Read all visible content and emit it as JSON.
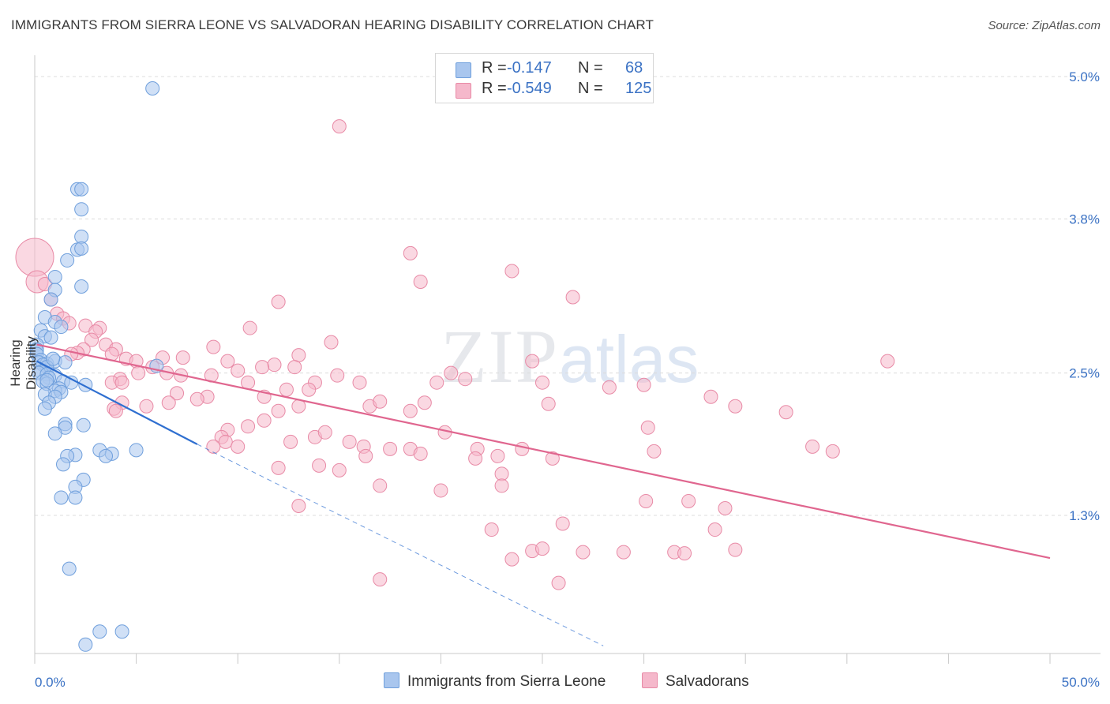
{
  "header": {
    "title": "IMMIGRANTS FROM SIERRA LEONE VS SALVADORAN HEARING DISABILITY CORRELATION CHART",
    "source": "Source: ZipAtlas.com"
  },
  "watermark": {
    "zip": "ZIP",
    "atlas": "atlas"
  },
  "legend": {
    "series": [
      {
        "r_label": "R =",
        "r_value": "-0.147",
        "n_label": "N =",
        "n_value": "68",
        "color": "#a9c6ee"
      },
      {
        "r_label": "R =",
        "r_value": "-0.549",
        "n_label": "N =",
        "n_value": "125",
        "color": "#f5b8cb"
      }
    ]
  },
  "colors": {
    "blue_fill": "#a9c6ee",
    "blue_stroke": "#6f9fdc",
    "blue_line": "#2f6fd0",
    "pink_fill": "#f5b8cb",
    "pink_stroke": "#e88aa6",
    "pink_line": "#e0668f",
    "axis_text": "#3b72c4",
    "grid": "#dcdcdc"
  },
  "chart_data": {
    "type": "scatter",
    "title": "IMMIGRANTS FROM SIERRA LEONE VS SALVADORAN HEARING DISABILITY CORRELATION CHART",
    "xlabel": "",
    "ylabel": "Hearing Disability",
    "xlim": [
      0,
      50
    ],
    "ylim": [
      0.3,
      5.0
    ],
    "x_tick_labels": [
      "0.0%",
      "50.0%"
    ],
    "y_ticks": [
      1.3,
      2.5,
      3.8,
      5.0
    ],
    "y_tick_labels": [
      "1.3%",
      "2.5%",
      "3.8%",
      "5.0%"
    ],
    "grid": true,
    "legend_position": "top-center",
    "series": [
      {
        "name": "Immigrants from Sierra Leone",
        "color": "#a9c6ee",
        "trend": {
          "x0": 0.1,
          "y0": 2.6,
          "x1": 8.0,
          "y1": 1.9,
          "dash_to_x": 28.0,
          "dash_to_y": 0.2
        },
        "points": [
          [
            5.8,
            4.9
          ],
          [
            2.1,
            4.05
          ],
          [
            2.3,
            4.05
          ],
          [
            2.3,
            3.88
          ],
          [
            2.3,
            3.65
          ],
          [
            2.1,
            3.54
          ],
          [
            2.3,
            3.55
          ],
          [
            1.6,
            3.45
          ],
          [
            1.0,
            3.31
          ],
          [
            1.0,
            3.2
          ],
          [
            2.3,
            3.23
          ],
          [
            0.8,
            3.12
          ],
          [
            0.5,
            2.97
          ],
          [
            1.0,
            2.93
          ],
          [
            1.3,
            2.89
          ],
          [
            0.3,
            2.86
          ],
          [
            0.5,
            2.81
          ],
          [
            0.8,
            2.8
          ],
          [
            0.1,
            2.74
          ],
          [
            0.1,
            2.7
          ],
          [
            0.1,
            2.69
          ],
          [
            0.1,
            2.66
          ],
          [
            0.3,
            2.61
          ],
          [
            0.2,
            2.59
          ],
          [
            0.6,
            2.58
          ],
          [
            1.0,
            2.6
          ],
          [
            1.5,
            2.59
          ],
          [
            0.4,
            2.57
          ],
          [
            0.6,
            2.55
          ],
          [
            0.3,
            2.51
          ],
          [
            0.2,
            2.5
          ],
          [
            0.6,
            2.49
          ],
          [
            1.0,
            2.48
          ],
          [
            0.7,
            2.46
          ],
          [
            0.4,
            2.43
          ],
          [
            0.6,
            2.41
          ],
          [
            1.4,
            2.43
          ],
          [
            1.8,
            2.42
          ],
          [
            2.5,
            2.4
          ],
          [
            1.2,
            2.37
          ],
          [
            1.0,
            2.35
          ],
          [
            1.3,
            2.34
          ],
          [
            0.5,
            2.32
          ],
          [
            1.0,
            2.3
          ],
          [
            0.7,
            2.25
          ],
          [
            0.5,
            2.2
          ],
          [
            1.5,
            2.07
          ],
          [
            2.4,
            2.06
          ],
          [
            1.5,
            2.04
          ],
          [
            1.0,
            1.99
          ],
          [
            3.2,
            1.85
          ],
          [
            5.0,
            1.85
          ],
          [
            2.0,
            1.81
          ],
          [
            3.8,
            1.82
          ],
          [
            3.5,
            1.8
          ],
          [
            1.6,
            1.8
          ],
          [
            1.4,
            1.73
          ],
          [
            2.4,
            1.6
          ],
          [
            2.0,
            1.54
          ],
          [
            1.3,
            1.45
          ],
          [
            1.7,
            0.85
          ],
          [
            3.2,
            0.32
          ],
          [
            4.3,
            0.32
          ],
          [
            2.5,
            0.21
          ],
          [
            6.0,
            2.56
          ],
          [
            2.0,
            1.45
          ],
          [
            0.9,
            2.62
          ],
          [
            0.6,
            2.44
          ]
        ]
      },
      {
        "name": "Salvadorans",
        "color": "#f5b8cb",
        "trend": {
          "x0": 0.1,
          "y0": 2.74,
          "x1": 50.0,
          "y1": 0.94
        },
        "points": [
          [
            15.0,
            4.58
          ],
          [
            18.5,
            3.51
          ],
          [
            23.5,
            3.36
          ],
          [
            19.0,
            3.27
          ],
          [
            26.5,
            3.14
          ],
          [
            12.0,
            3.1
          ],
          [
            0.5,
            3.25
          ],
          [
            0.8,
            3.12
          ],
          [
            1.1,
            3.0
          ],
          [
            1.4,
            2.96
          ],
          [
            1.7,
            2.92
          ],
          [
            2.5,
            2.9
          ],
          [
            3.2,
            2.88
          ],
          [
            3.0,
            2.85
          ],
          [
            2.8,
            2.78
          ],
          [
            3.5,
            2.74
          ],
          [
            2.4,
            2.7
          ],
          [
            4.0,
            2.7
          ],
          [
            2.1,
            2.67
          ],
          [
            1.8,
            2.66
          ],
          [
            3.8,
            2.66
          ],
          [
            4.5,
            2.62
          ],
          [
            5.0,
            2.6
          ],
          [
            6.3,
            2.63
          ],
          [
            7.3,
            2.63
          ],
          [
            8.8,
            2.72
          ],
          [
            9.5,
            2.6
          ],
          [
            10.6,
            2.88
          ],
          [
            14.6,
            2.76
          ],
          [
            13.0,
            2.65
          ],
          [
            12.8,
            2.55
          ],
          [
            11.8,
            2.57
          ],
          [
            11.2,
            2.55
          ],
          [
            10.0,
            2.52
          ],
          [
            8.7,
            2.48
          ],
          [
            7.2,
            2.48
          ],
          [
            6.5,
            2.5
          ],
          [
            5.8,
            2.55
          ],
          [
            5.1,
            2.5
          ],
          [
            4.2,
            2.45
          ],
          [
            3.8,
            2.42
          ],
          [
            4.3,
            2.42
          ],
          [
            7.0,
            2.33
          ],
          [
            8.5,
            2.3
          ],
          [
            8.0,
            2.28
          ],
          [
            6.6,
            2.25
          ],
          [
            5.5,
            2.22
          ],
          [
            4.3,
            2.25
          ],
          [
            3.9,
            2.2
          ],
          [
            4.0,
            2.18
          ],
          [
            10.5,
            2.42
          ],
          [
            11.3,
            2.3
          ],
          [
            12.4,
            2.36
          ],
          [
            13.8,
            2.42
          ],
          [
            13.5,
            2.36
          ],
          [
            14.9,
            2.48
          ],
          [
            16.0,
            2.42
          ],
          [
            16.5,
            2.22
          ],
          [
            17.0,
            2.26
          ],
          [
            19.8,
            2.42
          ],
          [
            20.5,
            2.5
          ],
          [
            21.2,
            2.45
          ],
          [
            19.2,
            2.25
          ],
          [
            18.5,
            2.18
          ],
          [
            13.0,
            2.22
          ],
          [
            12.0,
            2.18
          ],
          [
            11.3,
            2.1
          ],
          [
            10.5,
            2.05
          ],
          [
            9.5,
            2.02
          ],
          [
            9.2,
            1.96
          ],
          [
            9.4,
            1.92
          ],
          [
            8.8,
            1.88
          ],
          [
            10.0,
            1.88
          ],
          [
            12.6,
            1.92
          ],
          [
            13.8,
            1.96
          ],
          [
            14.3,
            2.0
          ],
          [
            15.5,
            1.92
          ],
          [
            16.2,
            1.88
          ],
          [
            16.3,
            1.8
          ],
          [
            17.5,
            1.86
          ],
          [
            18.5,
            1.86
          ],
          [
            19.0,
            1.82
          ],
          [
            20.2,
            2.0
          ],
          [
            21.8,
            1.86
          ],
          [
            21.7,
            1.78
          ],
          [
            22.8,
            1.8
          ],
          [
            24.0,
            1.86
          ],
          [
            25.5,
            1.78
          ],
          [
            25.3,
            2.24
          ],
          [
            25.0,
            2.42
          ],
          [
            24.5,
            2.6
          ],
          [
            28.3,
            2.38
          ],
          [
            30.0,
            2.4
          ],
          [
            33.3,
            2.3
          ],
          [
            34.5,
            2.22
          ],
          [
            37.0,
            2.17
          ],
          [
            42.0,
            2.6
          ],
          [
            38.3,
            1.88
          ],
          [
            39.3,
            1.84
          ],
          [
            30.2,
            2.04
          ],
          [
            30.5,
            1.84
          ],
          [
            30.1,
            1.42
          ],
          [
            32.2,
            1.42
          ],
          [
            34.0,
            1.36
          ],
          [
            23.0,
            1.65
          ],
          [
            23.0,
            1.55
          ],
          [
            20.0,
            1.51
          ],
          [
            17.0,
            1.55
          ],
          [
            15.0,
            1.68
          ],
          [
            12.0,
            1.7
          ],
          [
            14.0,
            1.72
          ],
          [
            13.0,
            1.38
          ],
          [
            22.5,
            1.18
          ],
          [
            23.5,
            0.93
          ],
          [
            24.5,
            1.0
          ],
          [
            25.0,
            1.02
          ],
          [
            26.0,
            1.23
          ],
          [
            27.0,
            0.99
          ],
          [
            29.0,
            0.99
          ],
          [
            31.5,
            0.99
          ],
          [
            32.0,
            0.98
          ],
          [
            33.5,
            1.18
          ],
          [
            34.5,
            1.01
          ],
          [
            17.0,
            0.76
          ],
          [
            25.8,
            0.73
          ]
        ]
      }
    ]
  },
  "bottom_legend": {
    "items": [
      {
        "label": "Immigrants from Sierra Leone",
        "color": "#a9c6ee"
      },
      {
        "label": "Salvadorans",
        "color": "#f5b8cb"
      }
    ]
  }
}
